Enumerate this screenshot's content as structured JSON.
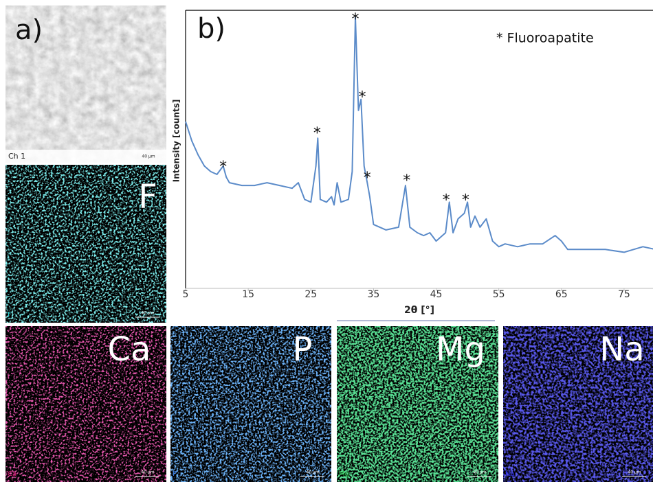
{
  "panels": {
    "a": {
      "label": "a)",
      "channel": "Ch 1",
      "scale": "40 µm"
    },
    "maps": [
      {
        "element": "F",
        "scale": "40 µm"
      },
      {
        "element": "Ca",
        "scale": "40 µm"
      },
      {
        "element": "P",
        "scale": "40 µm"
      },
      {
        "element": "Mg",
        "scale": "40 µm"
      },
      {
        "element": "Na",
        "scale": "40 µm"
      }
    ]
  },
  "chart_data": {
    "type": "line",
    "label": "b)",
    "legend": "* Fluoroapatite",
    "x_label": "2θ [°]",
    "y_label": "Intensity [counts]",
    "xlim": [
      5,
      80
    ],
    "ylim": [
      0,
      100
    ],
    "xticks": [
      5,
      15,
      25,
      35,
      45,
      55,
      65,
      75
    ],
    "grid": false,
    "series": [
      {
        "color": "#5b8bc9",
        "x": [
          5,
          6,
          7,
          8,
          9,
          10,
          11,
          11.5,
          12,
          14,
          16,
          18,
          20,
          22,
          23,
          24,
          25,
          25.8,
          26.1,
          26.5,
          27.5,
          28.3,
          28.7,
          29.2,
          29.8,
          31,
          31.6,
          32.1,
          32.6,
          33,
          33.5,
          34,
          34.4,
          35,
          37,
          39,
          40.1,
          40.8,
          42,
          43,
          44,
          45,
          46.5,
          47.1,
          47.7,
          48.5,
          49.5,
          50,
          50.5,
          51.2,
          52,
          53,
          54,
          55,
          56,
          58,
          60,
          62,
          64,
          65,
          66,
          70,
          72,
          75,
          78,
          80
        ],
        "values": [
          60,
          53,
          48,
          44,
          42,
          41,
          44,
          40,
          38,
          37,
          37,
          38,
          37,
          36,
          38,
          32,
          31,
          44,
          54,
          32,
          31,
          33,
          30,
          38,
          31,
          32,
          42,
          97.5,
          64,
          68,
          44,
          38,
          33,
          23,
          21,
          22,
          37,
          22,
          20,
          19,
          20,
          17,
          20,
          31,
          20,
          25,
          27,
          31,
          22,
          26,
          22,
          25,
          17,
          15,
          16,
          15,
          16,
          16,
          19,
          17,
          14,
          14,
          14,
          13,
          15,
          14
        ]
      }
    ],
    "annotations": [
      {
        "text": "*",
        "x": 11,
        "y": 45
      },
      {
        "text": "*",
        "x": 26,
        "y": 57
      },
      {
        "text": "*",
        "x": 32.1,
        "y": 98
      },
      {
        "text": "*",
        "x": 33.2,
        "y": 70
      },
      {
        "text": "*",
        "x": 34,
        "y": 41
      },
      {
        "text": "*",
        "x": 40.3,
        "y": 40
      },
      {
        "text": "*",
        "x": 46.6,
        "y": 33
      },
      {
        "text": "*",
        "x": 49.7,
        "y": 33
      }
    ]
  }
}
